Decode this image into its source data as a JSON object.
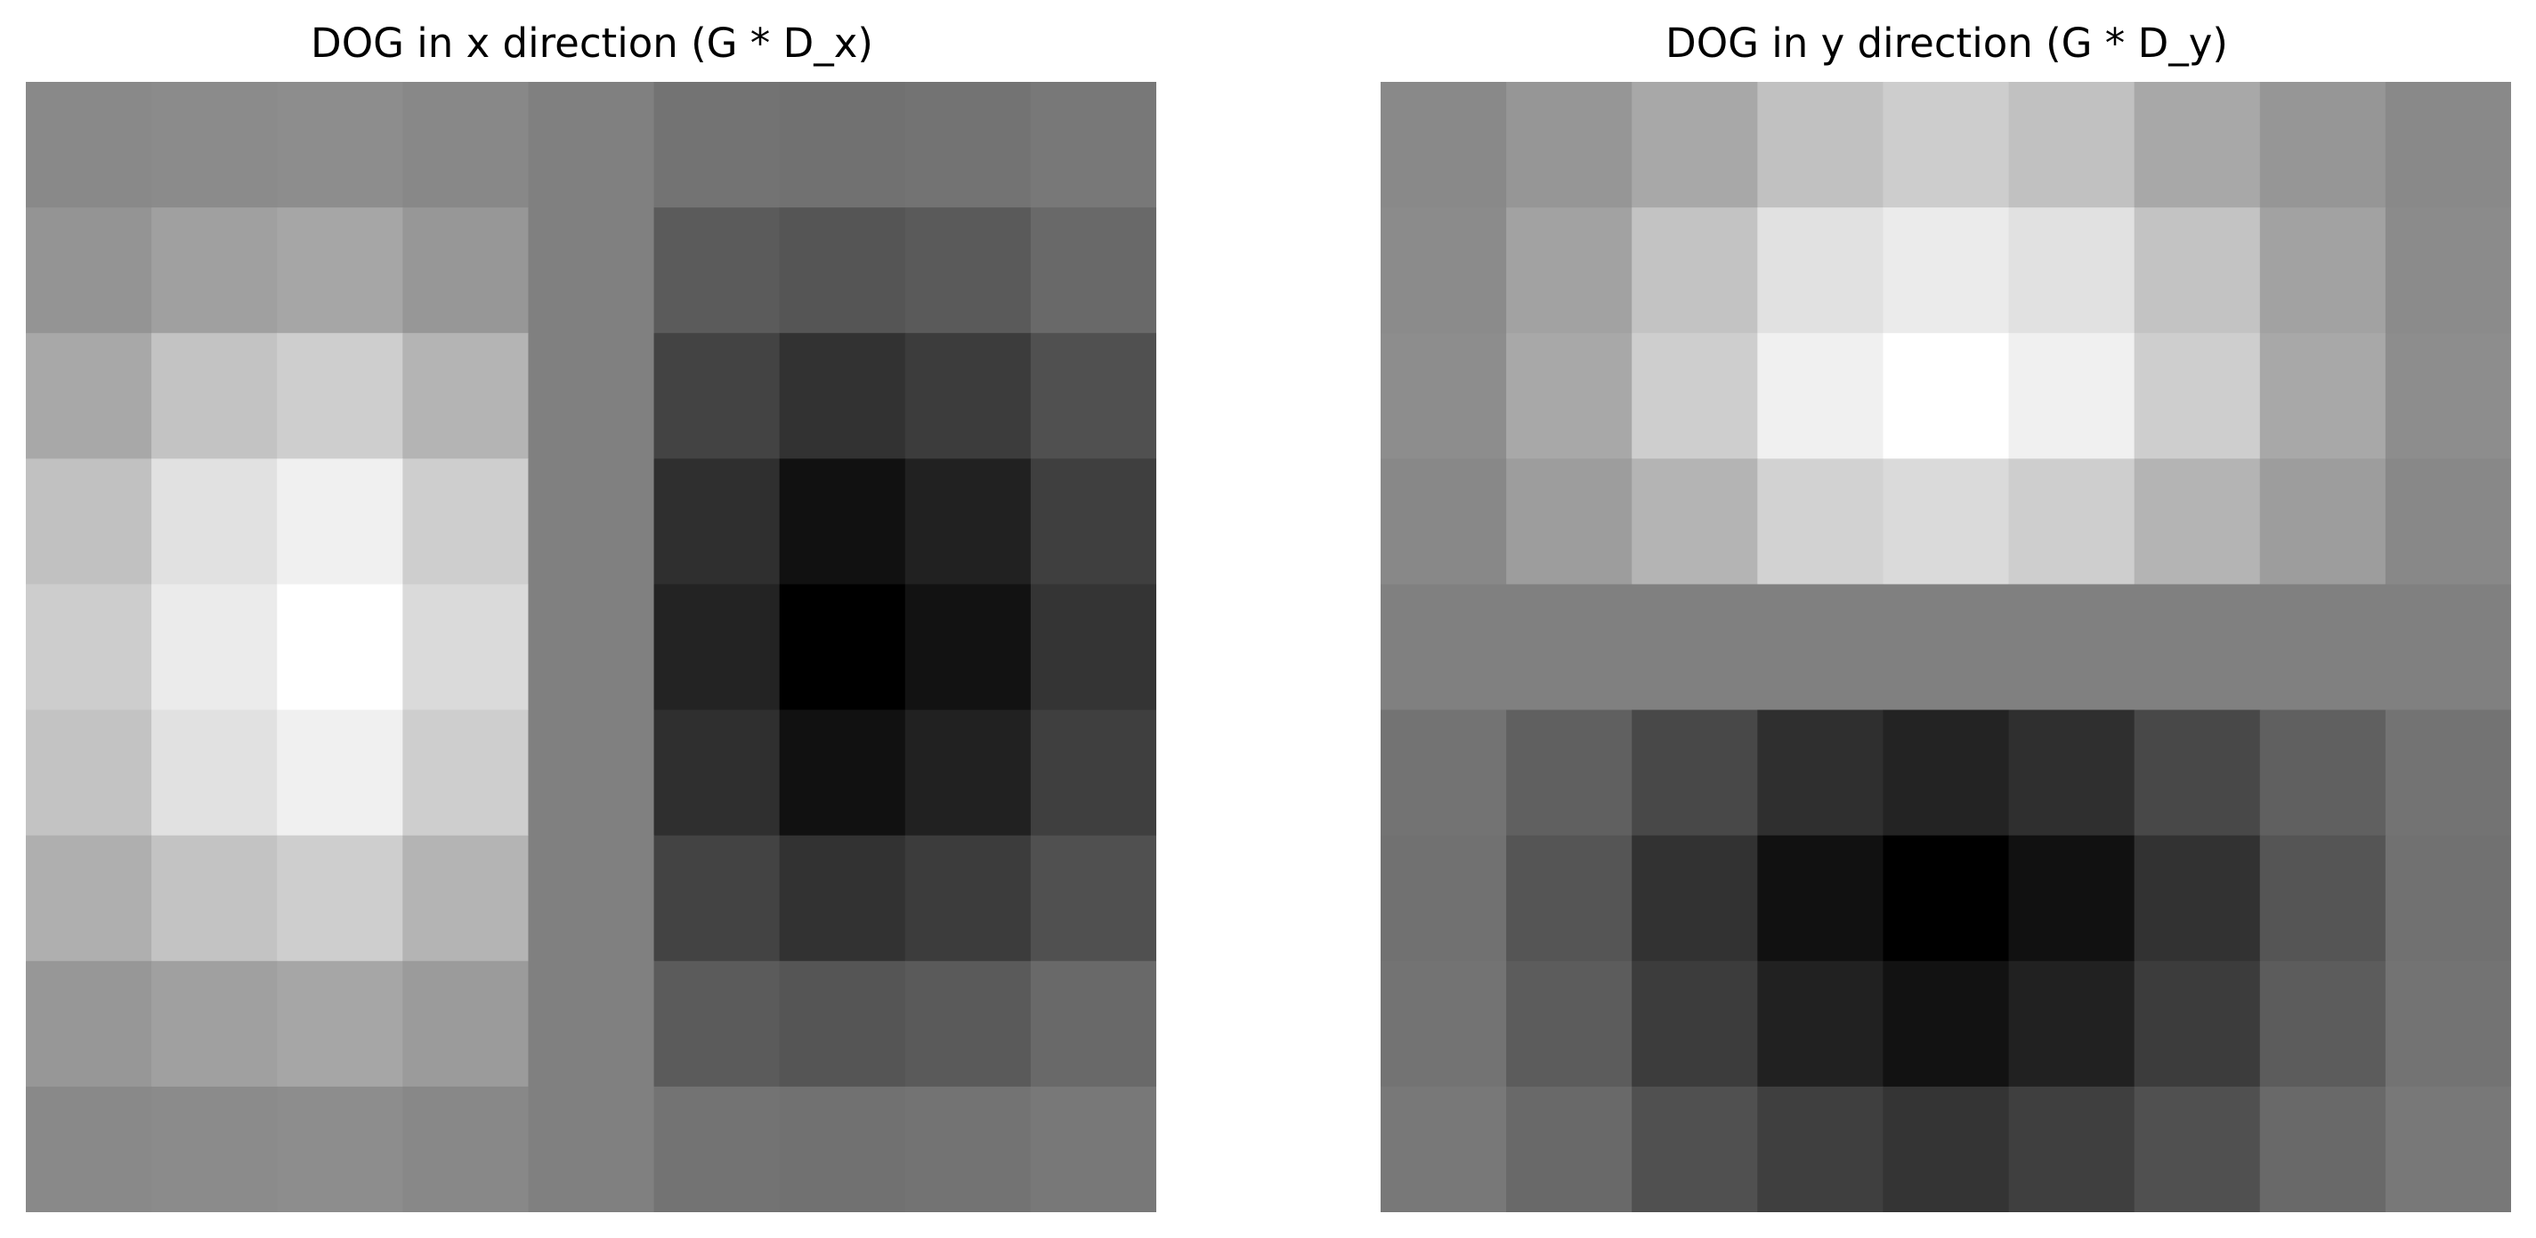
{
  "chart_data": [
    {
      "type": "heatmap",
      "title": "DOG in x direction (G * D_x)",
      "colormap": "gray",
      "axes": "off",
      "grid": false,
      "rows": 9,
      "cols": 9,
      "values": [
        [
          137,
          139,
          141,
          136,
          128,
          115,
          113,
          115,
          120
        ],
        [
          148,
          160,
          166,
          151,
          128,
          91,
          85,
          90,
          105
        ],
        [
          168,
          195,
          206,
          180,
          128,
          67,
          50,
          60,
          80
        ],
        [
          193,
          225,
          240,
          206,
          128,
          47,
          17,
          33,
          63
        ],
        [
          205,
          235,
          255,
          218,
          128,
          35,
          0,
          18,
          52
        ],
        [
          195,
          225,
          240,
          206,
          128,
          47,
          17,
          33,
          63
        ],
        [
          175,
          195,
          206,
          180,
          128,
          67,
          50,
          60,
          80
        ],
        [
          151,
          160,
          166,
          155,
          128,
          91,
          85,
          90,
          105
        ],
        [
          137,
          139,
          141,
          136,
          128,
          115,
          113,
          115,
          120
        ]
      ]
    },
    {
      "type": "heatmap",
      "title": "DOG in y direction (G * D_y)",
      "colormap": "gray",
      "axes": "off",
      "grid": false,
      "rows": 9,
      "cols": 9,
      "values": [
        [
          137,
          150,
          168,
          193,
          205,
          193,
          168,
          150,
          137
        ],
        [
          139,
          162,
          195,
          225,
          235,
          225,
          195,
          162,
          139
        ],
        [
          141,
          168,
          206,
          240,
          255,
          240,
          206,
          168,
          141
        ],
        [
          136,
          157,
          180,
          210,
          218,
          206,
          180,
          157,
          136
        ],
        [
          128,
          128,
          128,
          128,
          128,
          128,
          128,
          128,
          128
        ],
        [
          115,
          96,
          72,
          47,
          35,
          47,
          72,
          96,
          115
        ],
        [
          113,
          85,
          50,
          17,
          0,
          17,
          50,
          85,
          113
        ],
        [
          115,
          92,
          60,
          33,
          18,
          33,
          60,
          92,
          115
        ],
        [
          120,
          105,
          80,
          63,
          52,
          63,
          80,
          105,
          120
        ]
      ]
    }
  ]
}
